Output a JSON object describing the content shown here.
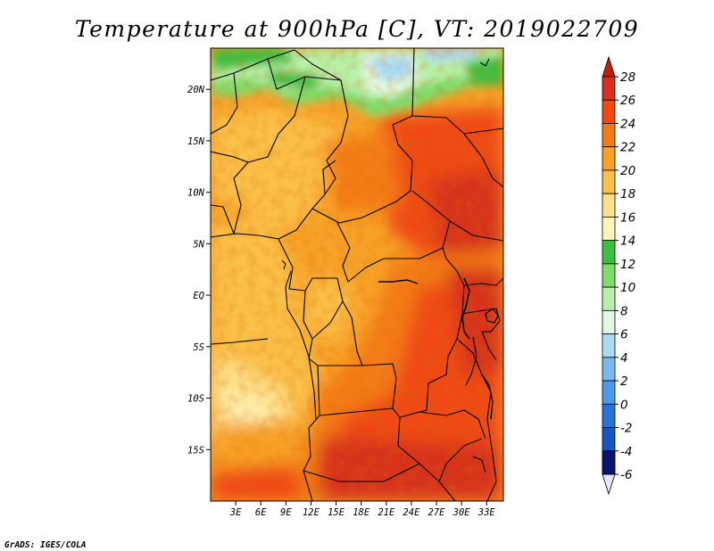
{
  "title": "Temperature at 900hPa [C], VT: 2019022709",
  "credit": "GrADS: IGES/COLA",
  "map": {
    "lon_range": [
      0,
      35
    ],
    "lat_range": [
      -20,
      24
    ],
    "lon_ticks": [
      {
        "value": 3,
        "label": "3E"
      },
      {
        "value": 6,
        "label": "6E"
      },
      {
        "value": 9,
        "label": "9E"
      },
      {
        "value": 12,
        "label": "12E"
      },
      {
        "value": 15,
        "label": "15E"
      },
      {
        "value": 18,
        "label": "18E"
      },
      {
        "value": 21,
        "label": "21E"
      },
      {
        "value": 24,
        "label": "24E"
      },
      {
        "value": 27,
        "label": "27E"
      },
      {
        "value": 30,
        "label": "30E"
      },
      {
        "value": 33,
        "label": "33E"
      }
    ],
    "lat_ticks": [
      {
        "value": 20,
        "label": "20N"
      },
      {
        "value": 15,
        "label": "15N"
      },
      {
        "value": 10,
        "label": "10N"
      },
      {
        "value": 5,
        "label": "5N"
      },
      {
        "value": 0,
        "label": "EQ"
      },
      {
        "value": -5,
        "label": "5S"
      },
      {
        "value": -10,
        "label": "10S"
      },
      {
        "value": -15,
        "label": "15S"
      }
    ]
  },
  "colorbar": {
    "levels": [
      {
        "label": "28",
        "color": "#d7301f"
      },
      {
        "label": "26",
        "color": "#f04a12"
      },
      {
        "label": "24",
        "color": "#f47c16"
      },
      {
        "label": "22",
        "color": "#f8a128"
      },
      {
        "label": "20",
        "color": "#fbc04a"
      },
      {
        "label": "18",
        "color": "#fee08a"
      },
      {
        "label": "16",
        "color": "#fff5b8"
      },
      {
        "label": "14",
        "color": "#3fbf3f"
      },
      {
        "label": "12",
        "color": "#7fdc6a"
      },
      {
        "label": "10",
        "color": "#b7f0a8"
      },
      {
        "label": "8",
        "color": "#e3f8e0"
      },
      {
        "label": "6",
        "color": "#aadbf5"
      },
      {
        "label": "4",
        "color": "#7ab9ef"
      },
      {
        "label": "2",
        "color": "#4c9be6"
      },
      {
        "label": "0",
        "color": "#2a73d6"
      },
      {
        "label": "-2",
        "color": "#1956c0"
      },
      {
        "label": "-4",
        "color": "#0e3aa0"
      },
      {
        "label": "-6",
        "color": "#08146e"
      }
    ],
    "top_cap_color": "#c81e12",
    "bottom_cap_color": "#e6e6ff"
  },
  "chart_data": {
    "type": "heatmap",
    "title": "Temperature at 900hPa [C], VT: 2019022709",
    "x_ticks": [
      "3E",
      "6E",
      "9E",
      "12E",
      "15E",
      "18E",
      "21E",
      "24E",
      "27E",
      "30E",
      "33E"
    ],
    "y_ticks": [
      "20N",
      "15N",
      "10N",
      "5N",
      "EQ",
      "5S",
      "10S",
      "15S"
    ],
    "colorbar_ticks": [
      28,
      26,
      24,
      22,
      20,
      18,
      16,
      14,
      12,
      10,
      8,
      6,
      4,
      2,
      0,
      -2,
      -4,
      -6
    ],
    "xlim": [
      0,
      35
    ],
    "ylim": [
      -20,
      24
    ],
    "regions": [
      {
        "lon": [
          0,
          35
        ],
        "lat": [
          20,
          24
        ],
        "value": 13
      },
      {
        "lon": [
          19,
          25
        ],
        "lat": [
          21,
          24
        ],
        "value": 8
      },
      {
        "lon": [
          0,
          17
        ],
        "lat": [
          9,
          20
        ],
        "value": 22
      },
      {
        "lon": [
          22,
          35
        ],
        "lat": [
          5,
          16
        ],
        "value": 26
      },
      {
        "lon": [
          26,
          35
        ],
        "lat": [
          2,
          10
        ],
        "value": 27
      },
      {
        "lon": [
          0,
          10
        ],
        "lat": [
          -15,
          5
        ],
        "value": 21
      },
      {
        "lon": [
          0,
          6
        ],
        "lat": [
          -14,
          -8
        ],
        "value": 19
      },
      {
        "lon": [
          12,
          20
        ],
        "lat": [
          -5,
          5
        ],
        "value": 22
      },
      {
        "lon": [
          19,
          35
        ],
        "lat": [
          -10,
          5
        ],
        "value": 25
      },
      {
        "lon": [
          12,
          35
        ],
        "lat": [
          -20,
          -11
        ],
        "value": 26
      },
      {
        "lon": [
          15,
          30
        ],
        "lat": [
          -20,
          -16
        ],
        "value": 27
      }
    ]
  }
}
